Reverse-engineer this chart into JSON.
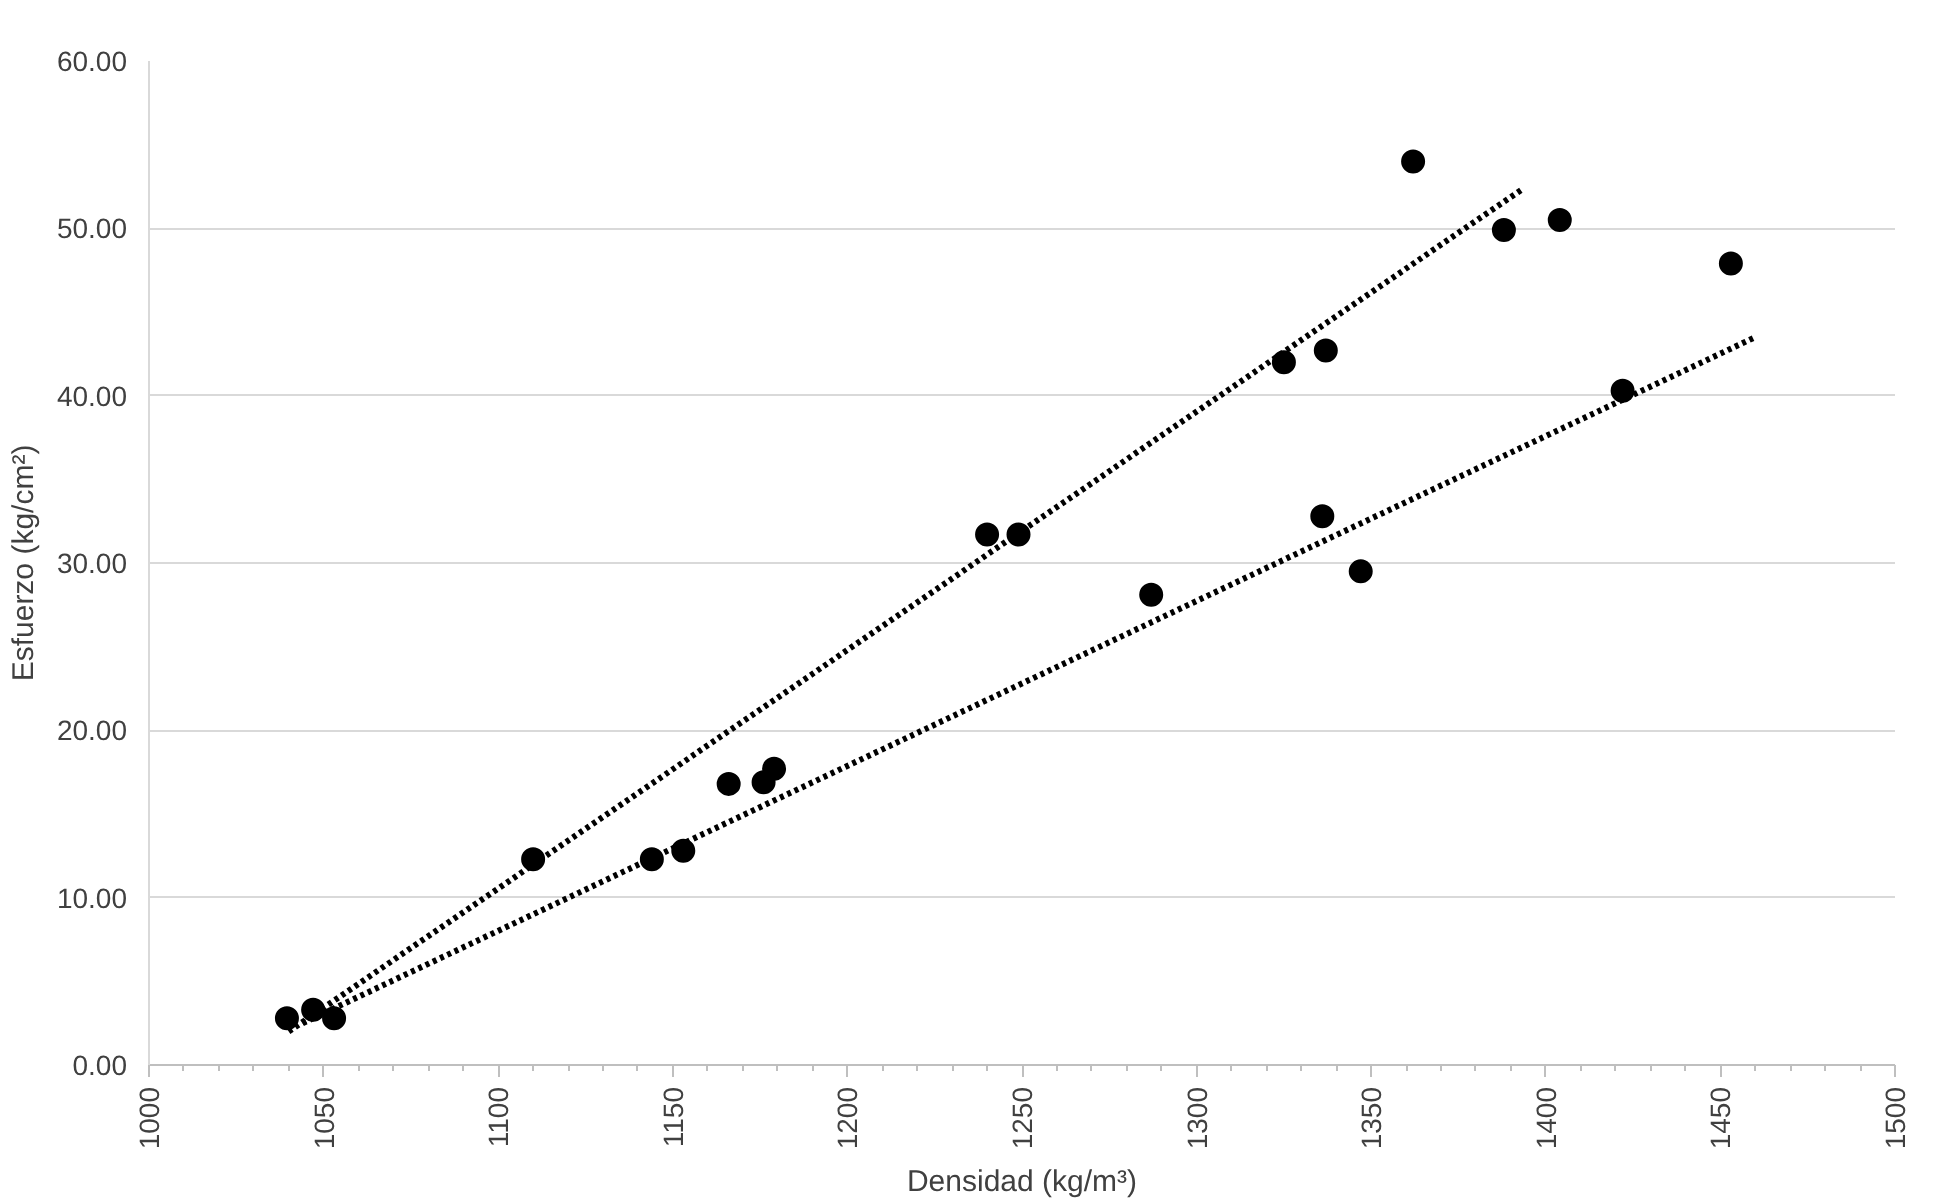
{
  "chart_data": {
    "type": "scatter",
    "xlabel": "Densidad (kg/m³)",
    "ylabel": "Esfuerzo (kg/cm²)",
    "xlim": [
      1000,
      1500
    ],
    "ylim": [
      0,
      60
    ],
    "xticks": [
      1000,
      1050,
      1100,
      1150,
      1200,
      1250,
      1300,
      1350,
      1400,
      1450,
      1500
    ],
    "yticks": [
      {
        "value": 0,
        "label": "0.00"
      },
      {
        "value": 10,
        "label": "10.00"
      },
      {
        "value": 20,
        "label": "20.00"
      },
      {
        "value": 30,
        "label": "30.00"
      },
      {
        "value": 40,
        "label": "40.00"
      },
      {
        "value": 50,
        "label": "50.00"
      },
      {
        "value": 60,
        "label": "60.00"
      }
    ],
    "grid": "y",
    "marker": "circle",
    "series": [
      {
        "color": "#000000",
        "x": [
          1039.5,
          1047,
          1053,
          1110,
          1144,
          1153,
          1166,
          1176,
          1179,
          1240,
          1249,
          1287,
          1325,
          1337,
          1336,
          1347,
          1362,
          1388,
          1404,
          1422,
          1453
        ],
        "values": [
          2.8,
          3.3,
          2.8,
          12.3,
          12.3,
          12.8,
          16.8,
          16.9,
          17.7,
          31.7,
          31.7,
          28.1,
          42.0,
          42.7,
          32.8,
          29.5,
          54.0,
          49.9,
          50.5,
          40.3,
          47.9
        ]
      },
      {
        "type": "line",
        "line_style": "dotted",
        "marker": "none",
        "color": "#000000",
        "x": [
          1040,
          1393
        ],
        "values": [
          2.0,
          52.3
        ]
      },
      {
        "type": "line",
        "line_style": "dotted",
        "marker": "none",
        "color": "#000000",
        "x": [
          1044,
          1460
        ],
        "values": [
          2.5,
          43.5
        ]
      }
    ]
  }
}
